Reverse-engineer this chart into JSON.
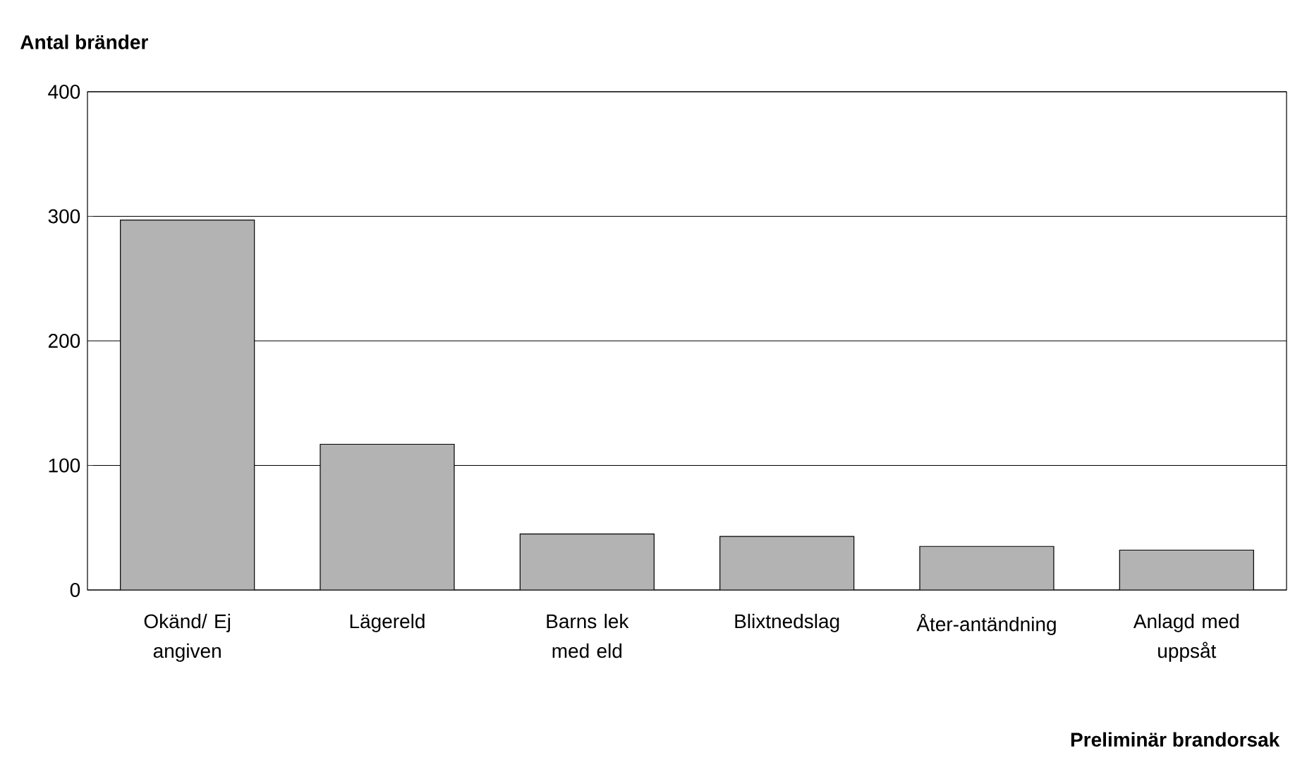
{
  "chart_data": {
    "type": "bar",
    "ylabel": "Antal bränder",
    "xlabel": "Preliminär brandorsak",
    "categories": [
      "Okänd/ Ej angiven",
      "Lägereld",
      "Barns lek med eld",
      "Blixtnedslag",
      "Åter-antändning",
      "Anlagd med uppsåt"
    ],
    "values": [
      297,
      117,
      45,
      43,
      35,
      32
    ],
    "color": "#b3b3b3",
    "ylim": [
      0,
      400
    ],
    "yticks": [
      0,
      100,
      200,
      300,
      400
    ],
    "grid": "y"
  }
}
